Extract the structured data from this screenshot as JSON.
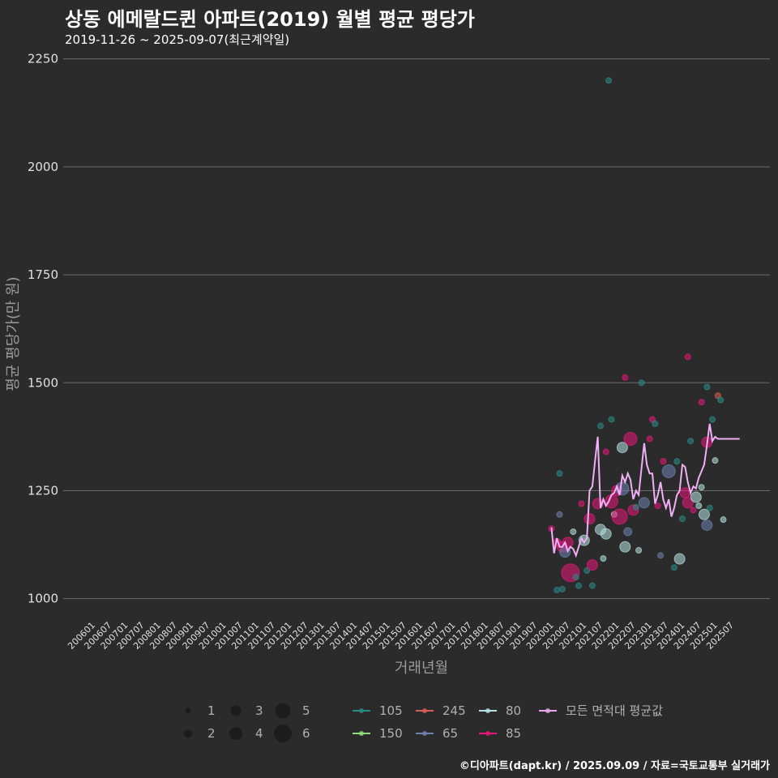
{
  "chart_data": {
    "type": "scatter",
    "title": "상동 에메랄드퀸 아파트(2019) 월별 평균 평당가",
    "subtitle": "2019-11-26 ~ 2025-09-07(최근계약일)",
    "xlabel": "거래년월",
    "ylabel": "평균 평당가(만 원)",
    "caption": "©디아파트(dapt.kr) / 2025.09.09 / 자료=국토교통부 실거래가",
    "ylim": [
      960,
      2270
    ],
    "yticks": [
      1000,
      1250,
      1500,
      1750,
      2000,
      2250
    ],
    "x_tick_labels": [
      "200601",
      "200607",
      "200701",
      "200707",
      "200801",
      "200807",
      "200901",
      "200907",
      "201001",
      "201007",
      "201101",
      "201107",
      "201201",
      "201207",
      "201301",
      "201307",
      "201401",
      "201407",
      "201501",
      "201507",
      "201601",
      "201607",
      "201701",
      "201707",
      "201801",
      "201807",
      "201901",
      "201907",
      "202001",
      "202007",
      "202101",
      "202107",
      "202201",
      "202207",
      "202301",
      "202307",
      "202401",
      "202407",
      "202501",
      "202507"
    ],
    "size_legend": {
      "labels": [
        "1",
        "2",
        "3",
        "4",
        "5",
        "6"
      ],
      "values": [
        1,
        2,
        3,
        4,
        5,
        6
      ]
    },
    "series_legend": [
      {
        "name": "105",
        "color": "#2a8c88"
      },
      {
        "name": "150",
        "color": "#8fe07a"
      },
      {
        "name": "245",
        "color": "#d9605a"
      },
      {
        "name": "65",
        "color": "#6e82b0"
      },
      {
        "name": "80",
        "color": "#b6e3e3"
      },
      {
        "name": "85",
        "color": "#e8187a"
      },
      {
        "name": "모든 면적대 평균값",
        "color": "#e8a8f0"
      }
    ],
    "average_line": {
      "name": "모든 면적대 평균값",
      "color": "#f0b0f5",
      "x": [
        2019.917,
        2020.0,
        2020.083,
        2020.167,
        2020.25,
        2020.333,
        2020.417,
        2020.5,
        2020.583,
        2020.667,
        2020.75,
        2020.833,
        2020.917,
        2021.0,
        2021.083,
        2021.167,
        2021.25,
        2021.333,
        2021.417,
        2021.5,
        2021.583,
        2021.667,
        2021.75,
        2021.833,
        2021.917,
        2022.0,
        2022.083,
        2022.167,
        2022.25,
        2022.333,
        2022.417,
        2022.5,
        2022.583,
        2022.667,
        2022.75,
        2022.833,
        2022.917,
        2023.0,
        2023.083,
        2023.167,
        2023.25,
        2023.333,
        2023.417,
        2023.5,
        2023.583,
        2023.667,
        2023.75,
        2023.833,
        2023.917,
        2024.0,
        2024.083,
        2024.167,
        2024.25,
        2024.333,
        2024.417,
        2024.5,
        2024.583,
        2024.667,
        2024.75,
        2024.833,
        2024.917,
        2025.0,
        2025.083,
        2025.167,
        2025.25,
        2025.333,
        2025.417,
        2025.5,
        2025.583,
        2025.667
      ],
      "values": [
        1165,
        1105,
        1140,
        1120,
        1120,
        1130,
        1110,
        1120,
        1115,
        1100,
        1120,
        1140,
        1130,
        1140,
        1250,
        1260,
        1320,
        1375,
        1210,
        1230,
        1215,
        1225,
        1240,
        1245,
        1260,
        1240,
        1285,
        1270,
        1290,
        1275,
        1230,
        1250,
        1240,
        1300,
        1360,
        1310,
        1290,
        1290,
        1220,
        1240,
        1270,
        1230,
        1210,
        1230,
        1190,
        1210,
        1240,
        1250,
        1310,
        1305,
        1270,
        1245,
        1260,
        1255,
        1280,
        1295,
        1310,
        1355,
        1405,
        1365,
        1375,
        1370,
        1370,
        1370,
        1370,
        1370,
        1370,
        1370,
        1370,
        1370
      ]
    },
    "points": [
      {
        "x": 2019.917,
        "y": 1162,
        "size": 1,
        "series": "85"
      },
      {
        "x": 2020.083,
        "y": 1130,
        "size": 2,
        "series": "85"
      },
      {
        "x": 2020.167,
        "y": 1290,
        "size": 1,
        "series": "105"
      },
      {
        "x": 2020.167,
        "y": 1195,
        "size": 1,
        "series": "65"
      },
      {
        "x": 2020.083,
        "y": 1020,
        "size": 1,
        "series": "105"
      },
      {
        "x": 2020.25,
        "y": 1022,
        "size": 1,
        "series": "105"
      },
      {
        "x": 2020.25,
        "y": 1120,
        "size": 3,
        "series": "85"
      },
      {
        "x": 2020.333,
        "y": 1108,
        "size": 3,
        "series": "65"
      },
      {
        "x": 2020.417,
        "y": 1130,
        "size": 3,
        "series": "85"
      },
      {
        "x": 2020.5,
        "y": 1060,
        "size": 6,
        "series": "85"
      },
      {
        "x": 2020.583,
        "y": 1155,
        "size": 1,
        "series": "80"
      },
      {
        "x": 2020.667,
        "y": 1050,
        "size": 1,
        "series": "105"
      },
      {
        "x": 2020.75,
        "y": 1030,
        "size": 1,
        "series": "105"
      },
      {
        "x": 2020.833,
        "y": 1220,
        "size": 1,
        "series": "85"
      },
      {
        "x": 2020.917,
        "y": 1135,
        "size": 3,
        "series": "80"
      },
      {
        "x": 2021.0,
        "y": 1065,
        "size": 1,
        "series": "105"
      },
      {
        "x": 2021.083,
        "y": 1185,
        "size": 3,
        "series": "85"
      },
      {
        "x": 2021.167,
        "y": 1078,
        "size": 3,
        "series": "85"
      },
      {
        "x": 2021.167,
        "y": 1030,
        "size": 1,
        "series": "105"
      },
      {
        "x": 2021.333,
        "y": 1220,
        "size": 3,
        "series": "85"
      },
      {
        "x": 2021.417,
        "y": 1400,
        "size": 1,
        "series": "105"
      },
      {
        "x": 2021.417,
        "y": 1160,
        "size": 3,
        "series": "80"
      },
      {
        "x": 2021.5,
        "y": 1093,
        "size": 1,
        "series": "80"
      },
      {
        "x": 2021.583,
        "y": 1340,
        "size": 1,
        "series": "85"
      },
      {
        "x": 2021.583,
        "y": 1150,
        "size": 3,
        "series": "80"
      },
      {
        "x": 2021.667,
        "y": 2200,
        "size": 1,
        "series": "105"
      },
      {
        "x": 2021.75,
        "y": 1415,
        "size": 1,
        "series": "105"
      },
      {
        "x": 2021.75,
        "y": 1225,
        "size": 4,
        "series": "85"
      },
      {
        "x": 2021.833,
        "y": 1195,
        "size": 1,
        "series": "80"
      },
      {
        "x": 2021.917,
        "y": 1250,
        "size": 3,
        "series": "85"
      },
      {
        "x": 2022.0,
        "y": 1190,
        "size": 5,
        "series": "85"
      },
      {
        "x": 2022.083,
        "y": 1350,
        "size": 3,
        "series": "80"
      },
      {
        "x": 2022.083,
        "y": 1255,
        "size": 4,
        "series": "65"
      },
      {
        "x": 2022.167,
        "y": 1512,
        "size": 1,
        "series": "85"
      },
      {
        "x": 2022.167,
        "y": 1120,
        "size": 3,
        "series": "80"
      },
      {
        "x": 2022.25,
        "y": 1155,
        "size": 2,
        "series": "65"
      },
      {
        "x": 2022.333,
        "y": 1370,
        "size": 4,
        "series": "85"
      },
      {
        "x": 2022.417,
        "y": 1205,
        "size": 3,
        "series": "85"
      },
      {
        "x": 2022.5,
        "y": 1212,
        "size": 1,
        "series": "105"
      },
      {
        "x": 2022.583,
        "y": 1112,
        "size": 1,
        "series": "80"
      },
      {
        "x": 2022.667,
        "y": 1500,
        "size": 1,
        "series": "105"
      },
      {
        "x": 2022.75,
        "y": 1222,
        "size": 3,
        "series": "65"
      },
      {
        "x": 2022.917,
        "y": 1370,
        "size": 1,
        "series": "85"
      },
      {
        "x": 2023.0,
        "y": 1415,
        "size": 1,
        "series": "85"
      },
      {
        "x": 2023.083,
        "y": 1405,
        "size": 1,
        "series": "105"
      },
      {
        "x": 2023.167,
        "y": 1215,
        "size": 1,
        "series": "85"
      },
      {
        "x": 2023.25,
        "y": 1100,
        "size": 1,
        "series": "65"
      },
      {
        "x": 2023.333,
        "y": 1318,
        "size": 1,
        "series": "85"
      },
      {
        "x": 2023.5,
        "y": 1295,
        "size": 4,
        "series": "65"
      },
      {
        "x": 2023.667,
        "y": 1072,
        "size": 1,
        "series": "105"
      },
      {
        "x": 2023.75,
        "y": 1318,
        "size": 1,
        "series": "105"
      },
      {
        "x": 2023.833,
        "y": 1092,
        "size": 3,
        "series": "80"
      },
      {
        "x": 2023.917,
        "y": 1185,
        "size": 1,
        "series": "105"
      },
      {
        "x": 2024.0,
        "y": 1245,
        "size": 3,
        "series": "85"
      },
      {
        "x": 2024.083,
        "y": 1560,
        "size": 1,
        "series": "85"
      },
      {
        "x": 2024.083,
        "y": 1222,
        "size": 3,
        "series": "85"
      },
      {
        "x": 2024.167,
        "y": 1365,
        "size": 1,
        "series": "105"
      },
      {
        "x": 2024.25,
        "y": 1205,
        "size": 1,
        "series": "85"
      },
      {
        "x": 2024.333,
        "y": 1235,
        "size": 3,
        "series": "80"
      },
      {
        "x": 2024.417,
        "y": 1215,
        "size": 1,
        "series": "80"
      },
      {
        "x": 2024.5,
        "y": 1455,
        "size": 1,
        "series": "85"
      },
      {
        "x": 2024.5,
        "y": 1258,
        "size": 1,
        "series": "80"
      },
      {
        "x": 2024.583,
        "y": 1195,
        "size": 3,
        "series": "80"
      },
      {
        "x": 2024.667,
        "y": 1490,
        "size": 1,
        "series": "105"
      },
      {
        "x": 2024.667,
        "y": 1362,
        "size": 3,
        "series": "85"
      },
      {
        "x": 2024.667,
        "y": 1170,
        "size": 3,
        "series": "65"
      },
      {
        "x": 2024.75,
        "y": 1210,
        "size": 1,
        "series": "105"
      },
      {
        "x": 2024.833,
        "y": 1415,
        "size": 1,
        "series": "105"
      },
      {
        "x": 2024.917,
        "y": 1320,
        "size": 1,
        "series": "80"
      },
      {
        "x": 2025.0,
        "y": 1470,
        "size": 1,
        "series": "245"
      },
      {
        "x": 2025.083,
        "y": 1460,
        "size": 1,
        "series": "105"
      },
      {
        "x": 2025.167,
        "y": 1183,
        "size": 1,
        "series": "80"
      }
    ]
  }
}
